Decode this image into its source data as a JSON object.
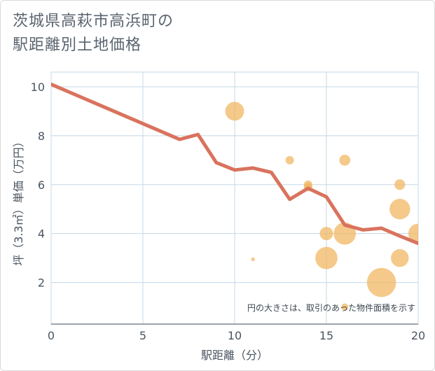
{
  "title_lines": [
    "茨城県高萩市高浜町の",
    "駅距離別土地価格"
  ],
  "colors": {
    "line": "#d9735e",
    "bubble": "#f0b45c",
    "grid": "#c5d8e6",
    "axis_text": "#4a5560"
  },
  "chart_data": {
    "type": "scatter",
    "title": "茨城県高萩市高浜町の 駅距離別土地価格",
    "xlabel": "駅距離（分）",
    "ylabel": "坪（3.3㎡）単価（万円）",
    "xlim": [
      0,
      20
    ],
    "ylim": [
      0.3,
      10.6
    ],
    "xticks": [
      0,
      5,
      10,
      15,
      20
    ],
    "yticks": [
      2,
      4,
      6,
      8,
      10
    ],
    "grid": true,
    "note": "円の大きさは、取引のあった物件面積を示す",
    "trend_line": {
      "x": [
        0,
        7,
        8,
        9,
        10,
        11,
        12,
        13,
        14,
        15,
        16,
        17,
        18,
        19,
        20
      ],
      "y": [
        10.1,
        7.85,
        8.05,
        6.9,
        6.6,
        6.68,
        6.5,
        5.4,
        5.85,
        5.5,
        4.35,
        4.15,
        4.22,
        3.9,
        3.6
      ]
    },
    "bubbles": [
      {
        "x": 10,
        "y": 9.0,
        "size": 5
      },
      {
        "x": 11,
        "y": 2.95,
        "size": 0.2
      },
      {
        "x": 13,
        "y": 7.0,
        "size": 1
      },
      {
        "x": 14,
        "y": 6.0,
        "size": 1
      },
      {
        "x": 14,
        "y": 5.9,
        "size": 1
      },
      {
        "x": 15,
        "y": 4.0,
        "size": 2.5
      },
      {
        "x": 15,
        "y": 3.0,
        "size": 7
      },
      {
        "x": 16,
        "y": 7.0,
        "size": 1.7
      },
      {
        "x": 16,
        "y": 4.0,
        "size": 7
      },
      {
        "x": 16,
        "y": 1.0,
        "size": 0.7
      },
      {
        "x": 18,
        "y": 2.0,
        "size": 12
      },
      {
        "x": 19,
        "y": 6.0,
        "size": 1.6
      },
      {
        "x": 19,
        "y": 5.0,
        "size": 6
      },
      {
        "x": 19,
        "y": 3.0,
        "size": 4.5
      },
      {
        "x": 20,
        "y": 4.0,
        "size": 5.5
      }
    ]
  }
}
